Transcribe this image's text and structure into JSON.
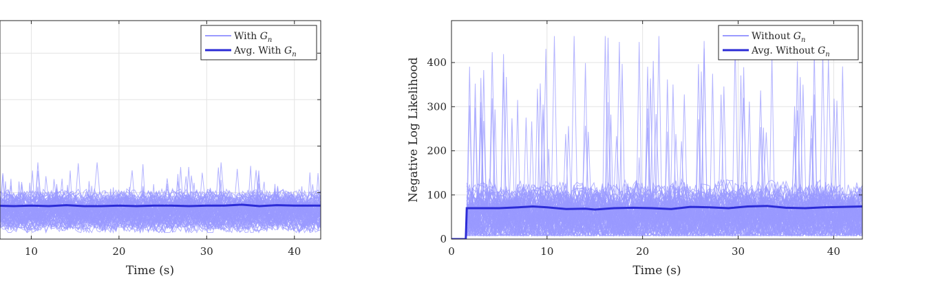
{
  "chart_data": [
    {
      "type": "line",
      "title": "",
      "xlabel": "Time (s)",
      "ylabel": "",
      "xlim": [
        0,
        43
      ],
      "ylim": [
        0,
        470
      ],
      "x_ticks": [
        10,
        20,
        30,
        40
      ],
      "y_ticks": [],
      "grid": true,
      "legend_position": "top-right",
      "series": [
        {
          "name": "With G_n",
          "legend_main": "With ",
          "legend_sym": "G",
          "legend_sub": "n",
          "color": "#9999ff",
          "kind": "trajectories",
          "count": 100,
          "mean": 72,
          "spread_low": 35,
          "spread_high": 150,
          "max_peak": 165
        },
        {
          "name": "Avg. With G_n",
          "legend_main": "Avg. With ",
          "legend_sym": "G",
          "legend_sub": "n",
          "color": "#2b2bd6",
          "kind": "average",
          "x": [
            0,
            2,
            4,
            6,
            8,
            10,
            12,
            14,
            16,
            18,
            20,
            22,
            24,
            26,
            28,
            30,
            32,
            34,
            36,
            38,
            40,
            42,
            43
          ],
          "values": [
            71,
            72,
            71,
            72,
            71,
            72,
            71,
            73,
            71,
            71,
            72,
            71,
            72,
            72,
            71,
            72,
            72,
            74,
            71,
            73,
            72,
            72,
            72
          ]
        }
      ]
    },
    {
      "type": "line",
      "title": "",
      "xlabel": "Time (s)",
      "ylabel": "Negative Log Likelihood",
      "xlim": [
        0,
        43
      ],
      "ylim": [
        0,
        495
      ],
      "x_ticks": [
        0,
        10,
        20,
        30,
        40
      ],
      "y_ticks": [
        0,
        100,
        200,
        300,
        400
      ],
      "grid": true,
      "legend_position": "top-right",
      "series": [
        {
          "name": "Without G_n",
          "legend_main": "Without ",
          "legend_sym": "G",
          "legend_sub": "n",
          "color": "#9999ff",
          "kind": "trajectories",
          "count": 100,
          "start": 1.6,
          "mean": 75,
          "spread_low": 20,
          "spread_high": 220,
          "max_peak": 460
        },
        {
          "name": "Avg. Without G_n",
          "legend_main": "Avg. Without ",
          "legend_sym": "G",
          "legend_sub": "n",
          "color": "#2b2bd6",
          "kind": "average",
          "x": [
            0,
            1.5,
            1.6,
            3,
            5,
            7,
            8.5,
            10,
            12,
            14,
            15,
            17,
            19,
            21,
            23,
            25,
            27,
            29,
            31,
            33,
            35,
            37,
            39,
            41,
            43
          ],
          "values": [
            0,
            0,
            70,
            70,
            70,
            72,
            74,
            72,
            68,
            69,
            67,
            70,
            71,
            70,
            68,
            73,
            72,
            70,
            74,
            75,
            71,
            70,
            72,
            73,
            74
          ]
        }
      ]
    }
  ]
}
